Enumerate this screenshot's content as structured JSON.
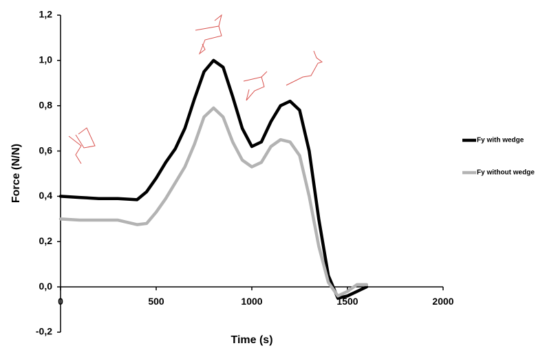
{
  "chart_data": {
    "type": "line",
    "x_label": "Time (s)",
    "y_label": "Force (N/N)",
    "x": [
      0,
      100,
      200,
      300,
      400,
      450,
      500,
      550,
      600,
      650,
      700,
      750,
      800,
      850,
      900,
      950,
      1000,
      1050,
      1100,
      1150,
      1200,
      1250,
      1300,
      1350,
      1400,
      1450,
      1500,
      1550,
      1600
    ],
    "series": [
      {
        "name": "Fy with wedge",
        "color": "#000000",
        "values": [
          0.4,
          0.395,
          0.39,
          0.39,
          0.385,
          0.42,
          0.48,
          0.55,
          0.61,
          0.7,
          0.83,
          0.95,
          1.0,
          0.97,
          0.84,
          0.7,
          0.62,
          0.64,
          0.73,
          0.8,
          0.82,
          0.78,
          0.6,
          0.3,
          0.05,
          -0.05,
          -0.04,
          -0.02,
          0.0
        ]
      },
      {
        "name": "Fy without wedge",
        "color": "#b3b3b3",
        "values": [
          0.3,
          0.295,
          0.295,
          0.295,
          0.275,
          0.28,
          0.33,
          0.39,
          0.46,
          0.53,
          0.63,
          0.75,
          0.79,
          0.75,
          0.64,
          0.56,
          0.53,
          0.55,
          0.62,
          0.65,
          0.64,
          0.58,
          0.4,
          0.18,
          0.02,
          -0.04,
          -0.02,
          0.01,
          0.01
        ]
      }
    ],
    "xlim": [
      0,
      2000
    ],
    "xticks": [
      0,
      500,
      1000,
      1500,
      2000
    ],
    "ylim": [
      -0.2,
      1.2
    ],
    "yticks": [
      {
        "value": -0.2,
        "label": "-0,2"
      },
      {
        "value": 0,
        "label": "0,0"
      },
      {
        "value": 0.2,
        "label": "0,2"
      },
      {
        "value": 0.4,
        "label": "0,4"
      },
      {
        "value": 0.6,
        "label": "0,6"
      },
      {
        "value": 0.8,
        "label": "0,8"
      },
      {
        "value": 1.0,
        "label": "1,0"
      },
      {
        "value": 1.2,
        "label": "1,2"
      }
    ],
    "legend": "right"
  }
}
